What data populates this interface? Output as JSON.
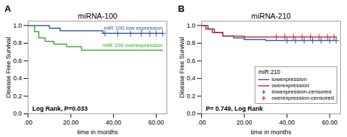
{
  "chart_data": [
    {
      "type": "step",
      "title": "miRNA-100",
      "panel_label": "A",
      "xlabel": "time in months",
      "ylabel": "Disease Free Survival",
      "annotation": "Log Rank, P=0.033",
      "xlim": [
        0,
        65
      ],
      "ylim": [
        0.0,
        1.05
      ],
      "xticks": [
        {
          "value": 0,
          "label": ".00"
        },
        {
          "value": 20,
          "label": "20.00"
        },
        {
          "value": 40,
          "label": "40.00"
        },
        {
          "value": 60,
          "label": "60.00"
        }
      ],
      "yticks": [
        {
          "value": 0.0,
          "label": "0.0"
        },
        0.2,
        0.4,
        0.6,
        0.8,
        {
          "value": 1.0,
          "label": "1.0"
        }
      ],
      "grid": false,
      "series": [
        {
          "name": "miR 100 low expression",
          "type": "step",
          "color": "#3355AA",
          "x": [
            0,
            7,
            10,
            15,
            22,
            28,
            35,
            40,
            50,
            55,
            63
          ],
          "values": [
            1.0,
            1.0,
            0.97,
            0.94,
            0.94,
            0.94,
            0.91,
            0.91,
            0.91,
            0.91,
            0.91
          ]
        },
        {
          "name": "miR 100 overexpression",
          "type": "step",
          "color": "#33AA33",
          "x": [
            0,
            3,
            5,
            8,
            12,
            18,
            25,
            30,
            63
          ],
          "values": [
            1.0,
            0.93,
            0.86,
            0.82,
            0.79,
            0.76,
            0.72,
            0.72,
            0.72
          ]
        },
        {
          "type": "scatter",
          "marker": "+",
          "color": "#3355AA",
          "x": [
            36,
            42,
            48,
            53,
            57,
            60,
            63
          ],
          "values": [
            0.91,
            0.91,
            0.91,
            0.91,
            0.91,
            0.91,
            0.91
          ]
        }
      ]
    },
    {
      "type": "step",
      "title": "miRNA-210",
      "panel_label": "B",
      "xlabel": "time in months",
      "ylabel": "Disease Free Survival",
      "annotation": "P= 0.749, Log Rank",
      "legend_title": "miR 210",
      "legend": "lower right",
      "xlim": [
        0,
        65
      ],
      "ylim": [
        0.0,
        1.05
      ],
      "xticks": [
        {
          "value": 0,
          "label": ".00"
        },
        {
          "value": 20,
          "label": "20.00"
        },
        {
          "value": 40,
          "label": "40.00"
        },
        {
          "value": 60,
          "label": "60.00"
        }
      ],
      "yticks": [
        {
          "value": 0.0,
          "label": "0.0"
        },
        0.2,
        0.4,
        0.6,
        0.8,
        {
          "value": 1.0,
          "label": "1.0"
        }
      ],
      "grid": false,
      "series": [
        {
          "name": "lowexpression",
          "type": "step",
          "color": "#3355AA",
          "x": [
            0,
            3,
            6,
            10,
            15,
            20,
            25,
            30,
            35,
            40,
            63
          ],
          "values": [
            1.0,
            0.96,
            0.92,
            0.88,
            0.86,
            0.84,
            0.84,
            0.83,
            0.83,
            0.83,
            0.83
          ]
        },
        {
          "name": "overexpression",
          "type": "step",
          "color": "#CC2222",
          "x": [
            0,
            2,
            5,
            10,
            15,
            20,
            25,
            28,
            35,
            63
          ],
          "values": [
            1.0,
            0.96,
            0.92,
            0.88,
            0.88,
            0.87,
            0.87,
            0.87,
            0.87,
            0.87
          ]
        },
        {
          "name": "lowexpression-censored",
          "type": "scatter",
          "marker": "+",
          "color": "#3355AA",
          "x": [
            40,
            44,
            48,
            52,
            56,
            60,
            63
          ],
          "values": [
            0.83,
            0.83,
            0.83,
            0.83,
            0.83,
            0.83,
            0.83
          ]
        },
        {
          "name": "overexpression-censored",
          "type": "scatter",
          "marker": "+",
          "color": "#CC2222",
          "x": [
            35,
            39,
            43,
            47,
            51,
            55,
            59,
            62
          ],
          "values": [
            0.87,
            0.87,
            0.87,
            0.87,
            0.87,
            0.87,
            0.87,
            0.87
          ]
        }
      ]
    }
  ]
}
